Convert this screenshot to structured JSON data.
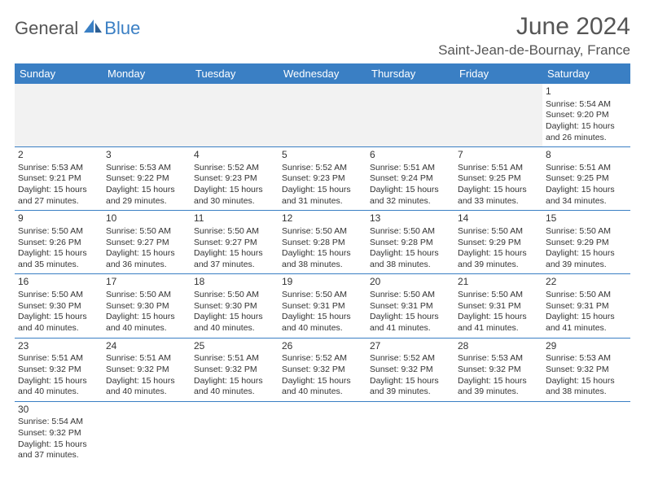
{
  "brand": {
    "part1": "General",
    "part2": "Blue"
  },
  "title": "June 2024",
  "location": "Saint-Jean-de-Bournay, France",
  "colors": {
    "header_bg": "#3a7fc4",
    "header_text": "#ffffff",
    "title_color": "#555555",
    "text_color": "#333333",
    "row_border": "#3a7fc4",
    "empty_bg": "#f2f2f2"
  },
  "weekdays": [
    "Sunday",
    "Monday",
    "Tuesday",
    "Wednesday",
    "Thursday",
    "Friday",
    "Saturday"
  ],
  "weeks": [
    [
      null,
      null,
      null,
      null,
      null,
      null,
      {
        "n": "1",
        "rise": "Sunrise: 5:54 AM",
        "set": "Sunset: 9:20 PM",
        "dl1": "Daylight: 15 hours",
        "dl2": "and 26 minutes."
      }
    ],
    [
      {
        "n": "2",
        "rise": "Sunrise: 5:53 AM",
        "set": "Sunset: 9:21 PM",
        "dl1": "Daylight: 15 hours",
        "dl2": "and 27 minutes."
      },
      {
        "n": "3",
        "rise": "Sunrise: 5:53 AM",
        "set": "Sunset: 9:22 PM",
        "dl1": "Daylight: 15 hours",
        "dl2": "and 29 minutes."
      },
      {
        "n": "4",
        "rise": "Sunrise: 5:52 AM",
        "set": "Sunset: 9:23 PM",
        "dl1": "Daylight: 15 hours",
        "dl2": "and 30 minutes."
      },
      {
        "n": "5",
        "rise": "Sunrise: 5:52 AM",
        "set": "Sunset: 9:23 PM",
        "dl1": "Daylight: 15 hours",
        "dl2": "and 31 minutes."
      },
      {
        "n": "6",
        "rise": "Sunrise: 5:51 AM",
        "set": "Sunset: 9:24 PM",
        "dl1": "Daylight: 15 hours",
        "dl2": "and 32 minutes."
      },
      {
        "n": "7",
        "rise": "Sunrise: 5:51 AM",
        "set": "Sunset: 9:25 PM",
        "dl1": "Daylight: 15 hours",
        "dl2": "and 33 minutes."
      },
      {
        "n": "8",
        "rise": "Sunrise: 5:51 AM",
        "set": "Sunset: 9:25 PM",
        "dl1": "Daylight: 15 hours",
        "dl2": "and 34 minutes."
      }
    ],
    [
      {
        "n": "9",
        "rise": "Sunrise: 5:50 AM",
        "set": "Sunset: 9:26 PM",
        "dl1": "Daylight: 15 hours",
        "dl2": "and 35 minutes."
      },
      {
        "n": "10",
        "rise": "Sunrise: 5:50 AM",
        "set": "Sunset: 9:27 PM",
        "dl1": "Daylight: 15 hours",
        "dl2": "and 36 minutes."
      },
      {
        "n": "11",
        "rise": "Sunrise: 5:50 AM",
        "set": "Sunset: 9:27 PM",
        "dl1": "Daylight: 15 hours",
        "dl2": "and 37 minutes."
      },
      {
        "n": "12",
        "rise": "Sunrise: 5:50 AM",
        "set": "Sunset: 9:28 PM",
        "dl1": "Daylight: 15 hours",
        "dl2": "and 38 minutes."
      },
      {
        "n": "13",
        "rise": "Sunrise: 5:50 AM",
        "set": "Sunset: 9:28 PM",
        "dl1": "Daylight: 15 hours",
        "dl2": "and 38 minutes."
      },
      {
        "n": "14",
        "rise": "Sunrise: 5:50 AM",
        "set": "Sunset: 9:29 PM",
        "dl1": "Daylight: 15 hours",
        "dl2": "and 39 minutes."
      },
      {
        "n": "15",
        "rise": "Sunrise: 5:50 AM",
        "set": "Sunset: 9:29 PM",
        "dl1": "Daylight: 15 hours",
        "dl2": "and 39 minutes."
      }
    ],
    [
      {
        "n": "16",
        "rise": "Sunrise: 5:50 AM",
        "set": "Sunset: 9:30 PM",
        "dl1": "Daylight: 15 hours",
        "dl2": "and 40 minutes."
      },
      {
        "n": "17",
        "rise": "Sunrise: 5:50 AM",
        "set": "Sunset: 9:30 PM",
        "dl1": "Daylight: 15 hours",
        "dl2": "and 40 minutes."
      },
      {
        "n": "18",
        "rise": "Sunrise: 5:50 AM",
        "set": "Sunset: 9:30 PM",
        "dl1": "Daylight: 15 hours",
        "dl2": "and 40 minutes."
      },
      {
        "n": "19",
        "rise": "Sunrise: 5:50 AM",
        "set": "Sunset: 9:31 PM",
        "dl1": "Daylight: 15 hours",
        "dl2": "and 40 minutes."
      },
      {
        "n": "20",
        "rise": "Sunrise: 5:50 AM",
        "set": "Sunset: 9:31 PM",
        "dl1": "Daylight: 15 hours",
        "dl2": "and 41 minutes."
      },
      {
        "n": "21",
        "rise": "Sunrise: 5:50 AM",
        "set": "Sunset: 9:31 PM",
        "dl1": "Daylight: 15 hours",
        "dl2": "and 41 minutes."
      },
      {
        "n": "22",
        "rise": "Sunrise: 5:50 AM",
        "set": "Sunset: 9:31 PM",
        "dl1": "Daylight: 15 hours",
        "dl2": "and 41 minutes."
      }
    ],
    [
      {
        "n": "23",
        "rise": "Sunrise: 5:51 AM",
        "set": "Sunset: 9:32 PM",
        "dl1": "Daylight: 15 hours",
        "dl2": "and 40 minutes."
      },
      {
        "n": "24",
        "rise": "Sunrise: 5:51 AM",
        "set": "Sunset: 9:32 PM",
        "dl1": "Daylight: 15 hours",
        "dl2": "and 40 minutes."
      },
      {
        "n": "25",
        "rise": "Sunrise: 5:51 AM",
        "set": "Sunset: 9:32 PM",
        "dl1": "Daylight: 15 hours",
        "dl2": "and 40 minutes."
      },
      {
        "n": "26",
        "rise": "Sunrise: 5:52 AM",
        "set": "Sunset: 9:32 PM",
        "dl1": "Daylight: 15 hours",
        "dl2": "and 40 minutes."
      },
      {
        "n": "27",
        "rise": "Sunrise: 5:52 AM",
        "set": "Sunset: 9:32 PM",
        "dl1": "Daylight: 15 hours",
        "dl2": "and 39 minutes."
      },
      {
        "n": "28",
        "rise": "Sunrise: 5:53 AM",
        "set": "Sunset: 9:32 PM",
        "dl1": "Daylight: 15 hours",
        "dl2": "and 39 minutes."
      },
      {
        "n": "29",
        "rise": "Sunrise: 5:53 AM",
        "set": "Sunset: 9:32 PM",
        "dl1": "Daylight: 15 hours",
        "dl2": "and 38 minutes."
      }
    ],
    [
      {
        "n": "30",
        "rise": "Sunrise: 5:54 AM",
        "set": "Sunset: 9:32 PM",
        "dl1": "Daylight: 15 hours",
        "dl2": "and 37 minutes."
      },
      null,
      null,
      null,
      null,
      null,
      null
    ]
  ]
}
